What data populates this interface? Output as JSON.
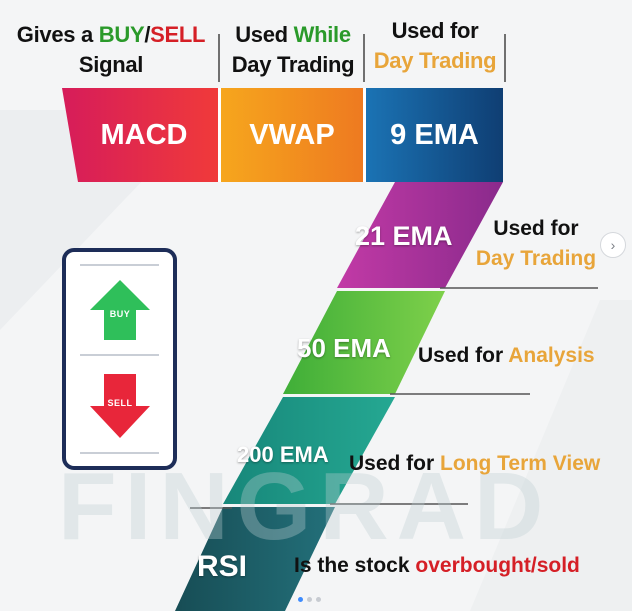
{
  "header": {
    "macd_note": {
      "prefix": "Gives a ",
      "buy": "BUY",
      "slash": "/",
      "sell": "SELL",
      "line2": "Signal"
    },
    "vwap_note": {
      "prefix": "Used ",
      "highlight": "While",
      "line2": "Day Trading"
    },
    "ema9_note": {
      "line1": "Used for",
      "line2": "Day Trading"
    }
  },
  "indicators": {
    "macd": "MACD",
    "vwap": "VWAP",
    "ema9": "9 EMA",
    "ema21": "21 EMA",
    "ema50": "50 EMA",
    "ema200": "200 EMA",
    "rsi": "RSI"
  },
  "descriptions": {
    "ema21": {
      "line1": "Used for",
      "line2": "Day Trading"
    },
    "ema50": {
      "prefix": "Used for ",
      "highlight": "Analysis"
    },
    "ema200": {
      "prefix": "Used for ",
      "highlight": "Long Term View"
    },
    "rsi": {
      "prefix": "Is the stock ",
      "highlight": "overbought/sold"
    }
  },
  "phone": {
    "buy": "BUY",
    "sell": "SELL"
  },
  "watermark": "FINGRAD",
  "colors": {
    "macd": "#e6264a",
    "vwap": "#f2901c",
    "ema9": "#17629c",
    "ema21": "#a9349a",
    "ema50": "#58bb3c",
    "ema200": "#1a9283",
    "rsi": "#1d5d63",
    "buy_arrow": "#2fbf5a",
    "sell_arrow": "#e8263a",
    "phone_frame": "#1d2d58"
  }
}
